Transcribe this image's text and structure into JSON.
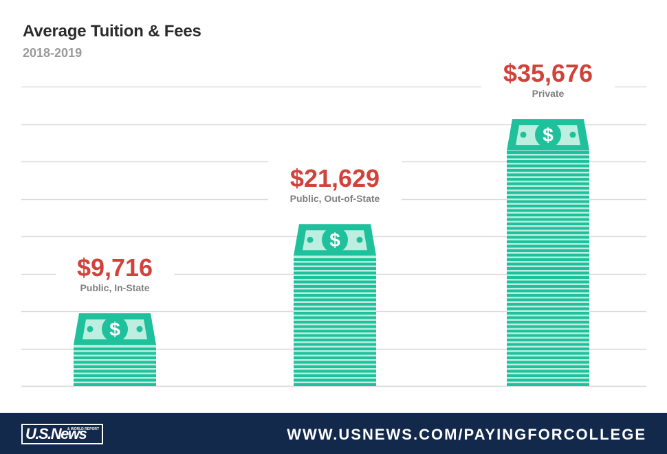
{
  "header": {
    "title": "Average Tuition & Fees",
    "subtitle": "2018-2019"
  },
  "chart_data": {
    "type": "bar",
    "title": "Average Tuition & Fees",
    "subtitle": "2018-2019",
    "categories": [
      "Public, In-State",
      "Public, Out-of-State",
      "Private"
    ],
    "values": [
      9716,
      21629,
      35676
    ],
    "value_labels": [
      "$9,716",
      "$21,629",
      "$35,676"
    ],
    "xlabel": "",
    "ylabel": "",
    "ylim": [
      0,
      40000
    ],
    "grid": true,
    "legend": "none",
    "bar_style": "stack-of-dollar-bills"
  },
  "colors": {
    "bill_green": "#1fc19c",
    "bill_light": "#bdeee0",
    "value_red": "#d0423a",
    "category_gray": "#7f7f7f",
    "title_dark": "#2b2b2b",
    "grid_gray": "#dcdcdc",
    "footer_navy": "#13294b"
  },
  "footer": {
    "logo_text": "U.S.News",
    "logo_small": "& WORLD REPORT",
    "url": "WWW.USNEWS.COM/PAYINGFORCOLLEGE"
  }
}
